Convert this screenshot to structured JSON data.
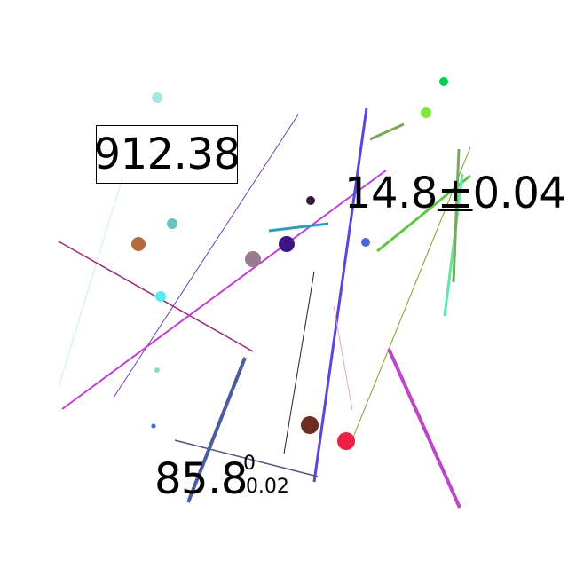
{
  "labels": {
    "boxed_value": "912.38",
    "tolerance": {
      "value": "14.8",
      "symbol": "±",
      "tolerance": "0.04"
    },
    "asymmetric": {
      "value": "85.8",
      "upper": "0",
      "lower": "-0.02"
    }
  },
  "colors": {
    "background": "#ffffff",
    "text": "#000000",
    "line_magenta_long": "#c03fd8",
    "line_violet_thin": "#6a3fb8",
    "line_blue_tall": "#5a45e0",
    "line_plum": "#9a2a74",
    "line_navy_thick": "#4d5c9e",
    "line_orchid_thick": "#bd46c9",
    "line_olive": "#8a9a28",
    "line_green": "#5bc745",
    "line_mint": "#5ee8a2",
    "line_sage": "#7aa85e",
    "line_teal": "#2a9cc0",
    "line_pink": "#e8a4c0",
    "line_black": "#222222",
    "line_slate": "#5a4f80",
    "line_pale_mint": "#cfeee0",
    "dot_turquoise": "#a6e8df",
    "dot_green": "#00cc55",
    "dot_lime": "#7fe83c",
    "dot_sienna": "#b56a3f",
    "dot_teal": "#66c4c0",
    "dot_dark_plum": "#3a1a40",
    "dot_indigo": "#3d1585",
    "dot_mauve": "#9a7a8e",
    "dot_blue": "#4a66dd",
    "dot_cyan": "#55ecef",
    "dot_aquamarine": "#7fe0c8",
    "dot_royal": "#3366dd",
    "dot_brown": "#6a2e22",
    "dot_crimson": "#ee1f45"
  }
}
